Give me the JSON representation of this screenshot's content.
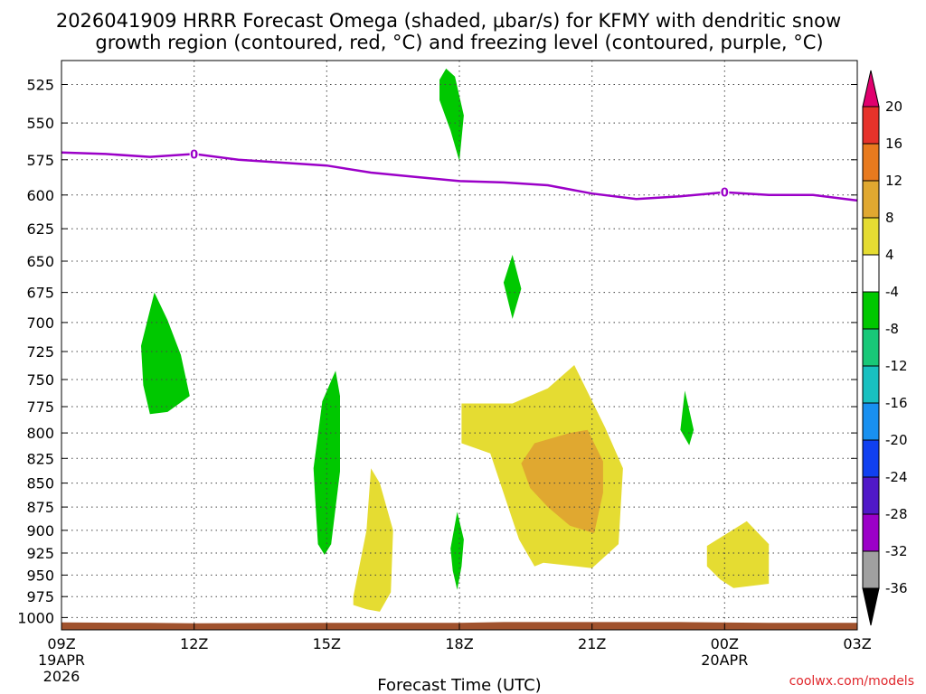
{
  "chart_data": {
    "type": "contour-cross-section",
    "title_line1": "2026041909 HRRR Forecast Omega (shaded, μbar/s) for KFMY with dendritic snow",
    "title_line2": "growth region (contoured, red, °C) and freezing level (contoured, purple, °C)",
    "xlabel": "Forecast Time (UTC)",
    "xlim": [
      0,
      18
    ],
    "ylim": [
      1015,
      510
    ],
    "y_scale": "log-pressure",
    "y_ticks": [
      525,
      550,
      575,
      600,
      625,
      650,
      675,
      700,
      725,
      750,
      775,
      800,
      825,
      850,
      875,
      900,
      925,
      950,
      975,
      1000
    ],
    "x_ticks": [
      {
        "hour": 0,
        "label": "09Z",
        "sub1": "19APR",
        "sub2": "2026"
      },
      {
        "hour": 3,
        "label": "12Z",
        "sub1": "",
        "sub2": ""
      },
      {
        "hour": 6,
        "label": "15Z",
        "sub1": "",
        "sub2": ""
      },
      {
        "hour": 9,
        "label": "18Z",
        "sub1": "",
        "sub2": ""
      },
      {
        "hour": 12,
        "label": "21Z",
        "sub1": "",
        "sub2": ""
      },
      {
        "hour": 15,
        "label": "00Z",
        "sub1": "20APR",
        "sub2": ""
      },
      {
        "hour": 18,
        "label": "03Z",
        "sub1": "",
        "sub2": ""
      }
    ],
    "freezing_level": {
      "color": "#9b00c8",
      "contour_label": "0",
      "label_hours": [
        3,
        15
      ],
      "points": [
        [
          0,
          570
        ],
        [
          1,
          571
        ],
        [
          2,
          573
        ],
        [
          3,
          571
        ],
        [
          4,
          575
        ],
        [
          5,
          577
        ],
        [
          6,
          579
        ],
        [
          7,
          584
        ],
        [
          8,
          587
        ],
        [
          9,
          590
        ],
        [
          10,
          591
        ],
        [
          11,
          593
        ],
        [
          12,
          599
        ],
        [
          13,
          603
        ],
        [
          14,
          601
        ],
        [
          15,
          598
        ],
        [
          16,
          600
        ],
        [
          17,
          600
        ],
        [
          18,
          604
        ]
      ]
    },
    "omega_regions": [
      {
        "name": "green-pos1",
        "level": "-8 to -4",
        "color": "#00c800",
        "points": [
          [
            8.55,
            522
          ],
          [
            8.7,
            515
          ],
          [
            8.9,
            520
          ],
          [
            9.1,
            545
          ],
          [
            9.0,
            576
          ],
          [
            8.8,
            555
          ],
          [
            8.55,
            535
          ]
        ]
      },
      {
        "name": "green-pos2",
        "level": "-8 to -4",
        "color": "#00c800",
        "points": [
          [
            1.8,
            720
          ],
          [
            2.1,
            675
          ],
          [
            2.4,
            698
          ],
          [
            2.7,
            728
          ],
          [
            2.9,
            765
          ],
          [
            2.4,
            780
          ],
          [
            2.0,
            782
          ],
          [
            1.85,
            755
          ]
        ]
      },
      {
        "name": "green-pos3",
        "level": "-8 to -4",
        "color": "#00c800",
        "points": [
          [
            10.0,
            667
          ],
          [
            10.2,
            645
          ],
          [
            10.4,
            672
          ],
          [
            10.2,
            697
          ]
        ]
      },
      {
        "name": "green-pos4",
        "level": "-8 to -4",
        "color": "#00c800",
        "points": [
          [
            5.7,
            835
          ],
          [
            5.9,
            770
          ],
          [
            6.2,
            742
          ],
          [
            6.3,
            765
          ],
          [
            6.3,
            838
          ],
          [
            6.1,
            915
          ],
          [
            5.95,
            927
          ],
          [
            5.8,
            915
          ],
          [
            5.75,
            875
          ]
        ]
      },
      {
        "name": "green-pos5",
        "level": "-8 to -4",
        "color": "#00c800",
        "points": [
          [
            8.8,
            920
          ],
          [
            8.95,
            880
          ],
          [
            9.1,
            910
          ],
          [
            9.05,
            940
          ],
          [
            8.95,
            967
          ],
          [
            8.85,
            945
          ]
        ]
      },
      {
        "name": "green-pos6",
        "level": "-8 to -4",
        "color": "#00c800",
        "points": [
          [
            14.0,
            797
          ],
          [
            14.1,
            760
          ],
          [
            14.3,
            797
          ],
          [
            14.2,
            812
          ]
        ]
      },
      {
        "name": "yellow-pos1",
        "level": "4 to 8",
        "color": "#e5dc32",
        "points": [
          [
            6.6,
            975
          ],
          [
            6.9,
            900
          ],
          [
            7.0,
            835
          ],
          [
            7.2,
            850
          ],
          [
            7.5,
            900
          ],
          [
            7.45,
            970
          ],
          [
            7.2,
            993
          ],
          [
            6.9,
            990
          ],
          [
            6.6,
            985
          ]
        ]
      },
      {
        "name": "yellow-pos2",
        "level": "4 to 8",
        "color": "#e5dc32",
        "points": [
          [
            9.05,
            772
          ],
          [
            10.2,
            772
          ],
          [
            11.0,
            758
          ],
          [
            11.6,
            737
          ],
          [
            12.3,
            795
          ],
          [
            12.7,
            835
          ],
          [
            12.6,
            915
          ],
          [
            12.0,
            942
          ],
          [
            10.9,
            936
          ],
          [
            10.7,
            940
          ],
          [
            10.35,
            910
          ],
          [
            9.7,
            820
          ],
          [
            9.05,
            810
          ]
        ]
      },
      {
        "name": "yellow-pos3",
        "level": "4 to 8",
        "color": "#e5dc32",
        "points": [
          [
            14.6,
            917
          ],
          [
            15.5,
            890
          ],
          [
            16.0,
            915
          ],
          [
            16.0,
            960
          ],
          [
            15.2,
            965
          ],
          [
            14.9,
            955
          ],
          [
            14.6,
            940
          ]
        ]
      },
      {
        "name": "orange-pos1",
        "level": "8 to 12",
        "color": "#e0a830",
        "points": [
          [
            10.4,
            830
          ],
          [
            10.7,
            810
          ],
          [
            11.5,
            800
          ],
          [
            11.9,
            797
          ],
          [
            12.25,
            828
          ],
          [
            12.25,
            860
          ],
          [
            12.05,
            903
          ],
          [
            11.5,
            895
          ],
          [
            11.0,
            875
          ],
          [
            10.6,
            855
          ]
        ]
      }
    ],
    "colorbar": {
      "labels": [
        "20",
        "16",
        "12",
        "8",
        "4",
        "-4",
        "-8",
        "-12",
        "-16",
        "-20",
        "-24",
        "-28",
        "-32",
        "-36"
      ],
      "colors": [
        "#e0006e",
        "#e6322a",
        "#e87a1e",
        "#e0a830",
        "#e5dc32",
        "#ffffff",
        "#00c800",
        "#18c878",
        "#18c0c0",
        "#1890f0",
        "#1040f0",
        "#5018c8",
        "#9b00c8",
        "#a0a0a0",
        "#000000"
      ]
    },
    "terrain_color": "#a0522d",
    "credit": "coolwx.com/models"
  }
}
